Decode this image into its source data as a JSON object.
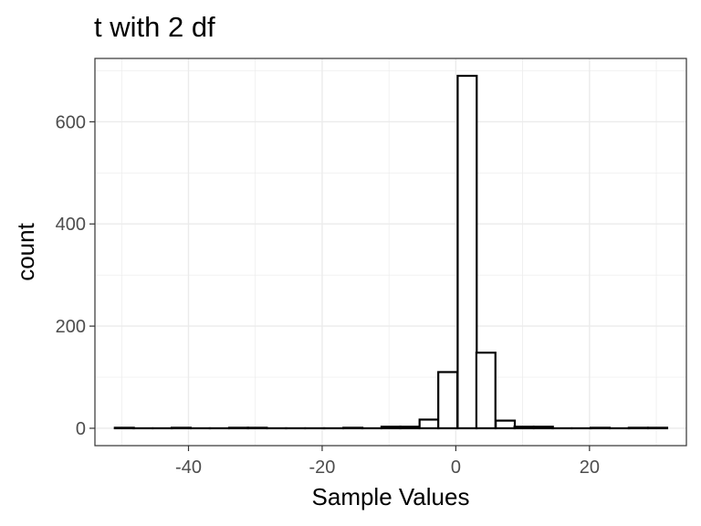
{
  "chart_data": {
    "type": "bar",
    "subtype": "histogram",
    "title": "t with 2 df",
    "xlabel": "Sample Values",
    "ylabel": "count",
    "xlim": [
      -54,
      34.5
    ],
    "ylim": [
      -34,
      724
    ],
    "x_ticks": [
      -40,
      -20,
      0,
      20
    ],
    "y_ticks": [
      0,
      200,
      400,
      600
    ],
    "x_tick_labels": [
      "-40",
      "-20",
      "0",
      "20"
    ],
    "y_tick_labels": [
      "0",
      "200",
      "400",
      "600"
    ],
    "grid": true,
    "legend": "none",
    "bin_width": 2.85,
    "bins": [
      {
        "x": -49.6,
        "count": 1
      },
      {
        "x": -46.8,
        "count": 0
      },
      {
        "x": -43.9,
        "count": 0
      },
      {
        "x": -41.1,
        "count": 1
      },
      {
        "x": -38.2,
        "count": 0
      },
      {
        "x": -35.4,
        "count": 0
      },
      {
        "x": -32.5,
        "count": 1
      },
      {
        "x": -29.7,
        "count": 1
      },
      {
        "x": -26.8,
        "count": 0
      },
      {
        "x": -24.0,
        "count": 0
      },
      {
        "x": -21.1,
        "count": 0
      },
      {
        "x": -18.3,
        "count": 0
      },
      {
        "x": -15.4,
        "count": 1
      },
      {
        "x": -12.6,
        "count": 0
      },
      {
        "x": -9.7,
        "count": 3
      },
      {
        "x": -6.9,
        "count": 3
      },
      {
        "x": -4.0,
        "count": 17
      },
      {
        "x": -1.2,
        "count": 110
      },
      {
        "x": 1.7,
        "count": 690
      },
      {
        "x": 4.5,
        "count": 148
      },
      {
        "x": 7.4,
        "count": 15
      },
      {
        "x": 10.2,
        "count": 3
      },
      {
        "x": 13.1,
        "count": 3
      },
      {
        "x": 15.9,
        "count": 0
      },
      {
        "x": 18.8,
        "count": 0
      },
      {
        "x": 21.6,
        "count": 1
      },
      {
        "x": 24.5,
        "count": 0
      },
      {
        "x": 27.3,
        "count": 1
      },
      {
        "x": 30.2,
        "count": 1
      }
    ],
    "colors": {
      "bar_fill": "#ffffff",
      "bar_outline": "#000000",
      "panel_border": "#333333",
      "grid": "#ebebeb",
      "tick_label": "#4d4d4d"
    }
  }
}
